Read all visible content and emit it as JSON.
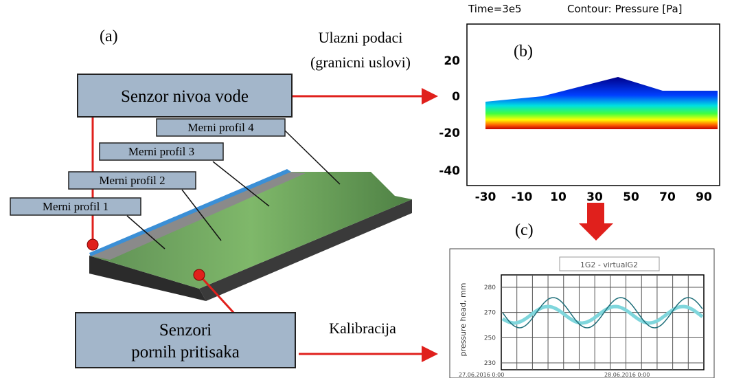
{
  "panel_a": {
    "label": "(a)",
    "input_label": [
      "Ulazni podaci",
      "(granicni uslovi)"
    ],
    "water_sensor": "Senzor nivoa vode",
    "profiles": [
      "Merni profil 1",
      "Merni profil 2",
      "Merni profil 3",
      "Merni profil 4"
    ],
    "pore_sensor": [
      "Senzori",
      "pornih pritisaka"
    ],
    "calibration_label": "Kalibracija"
  },
  "panel_b": {
    "label": "(b)",
    "time": "Time=3e5",
    "contour": "Contour: Pressure [Pa]",
    "yticks": [
      20,
      0,
      -20,
      -40
    ],
    "xticks": [
      -30,
      -10,
      10,
      30,
      50,
      70,
      90
    ]
  },
  "panel_c": {
    "label": "(c)",
    "legend": "1G2 - virtualG2",
    "ylabel": "pressure head, mm",
    "yticks": [
      280,
      270,
      250,
      230
    ],
    "xticks": [
      "27.06.2016 0:00",
      "28.06.2016 0:00"
    ]
  }
}
